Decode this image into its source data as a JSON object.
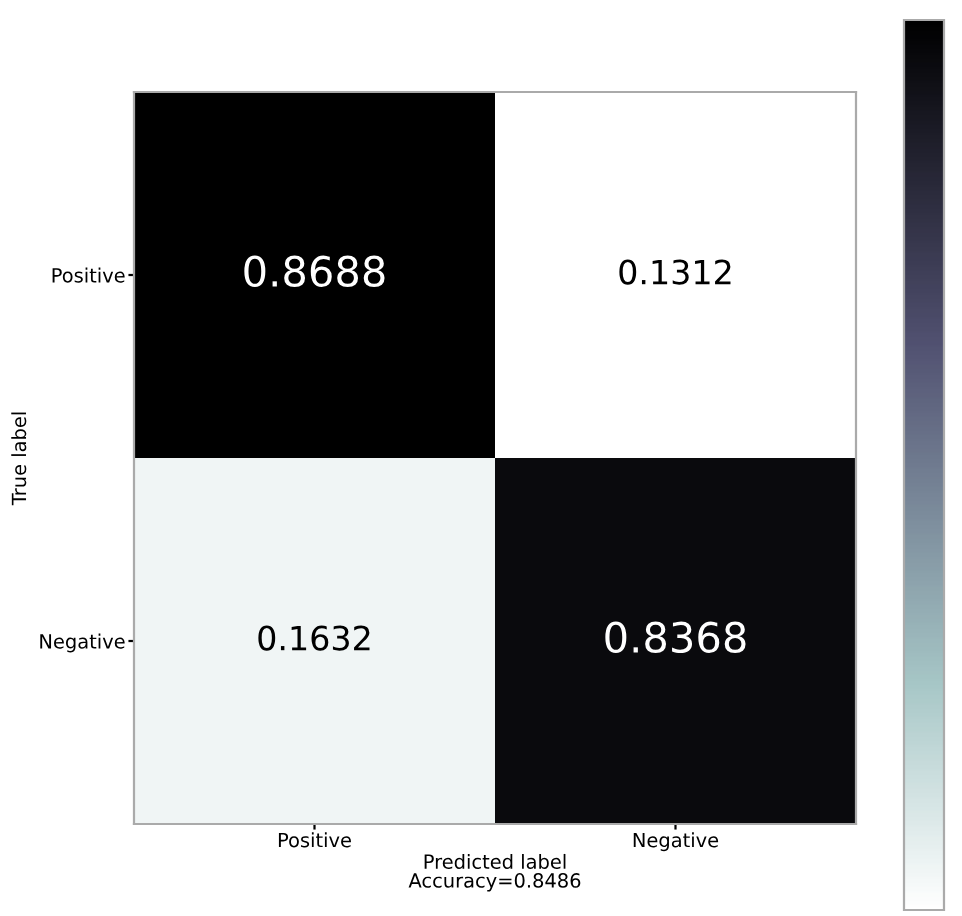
{
  "chart_data": {
    "type": "heatmap",
    "categories": [
      "Positive",
      "Negative"
    ],
    "y_categories": [
      "Positive",
      "Negative"
    ],
    "cells": [
      [
        0.8688,
        0.1312
      ],
      [
        0.1632,
        0.8368
      ]
    ],
    "data_labels": true,
    "xlabel": "Predicted label\nAccuracy=0.8486",
    "ylabel": "True label"
  }
}
